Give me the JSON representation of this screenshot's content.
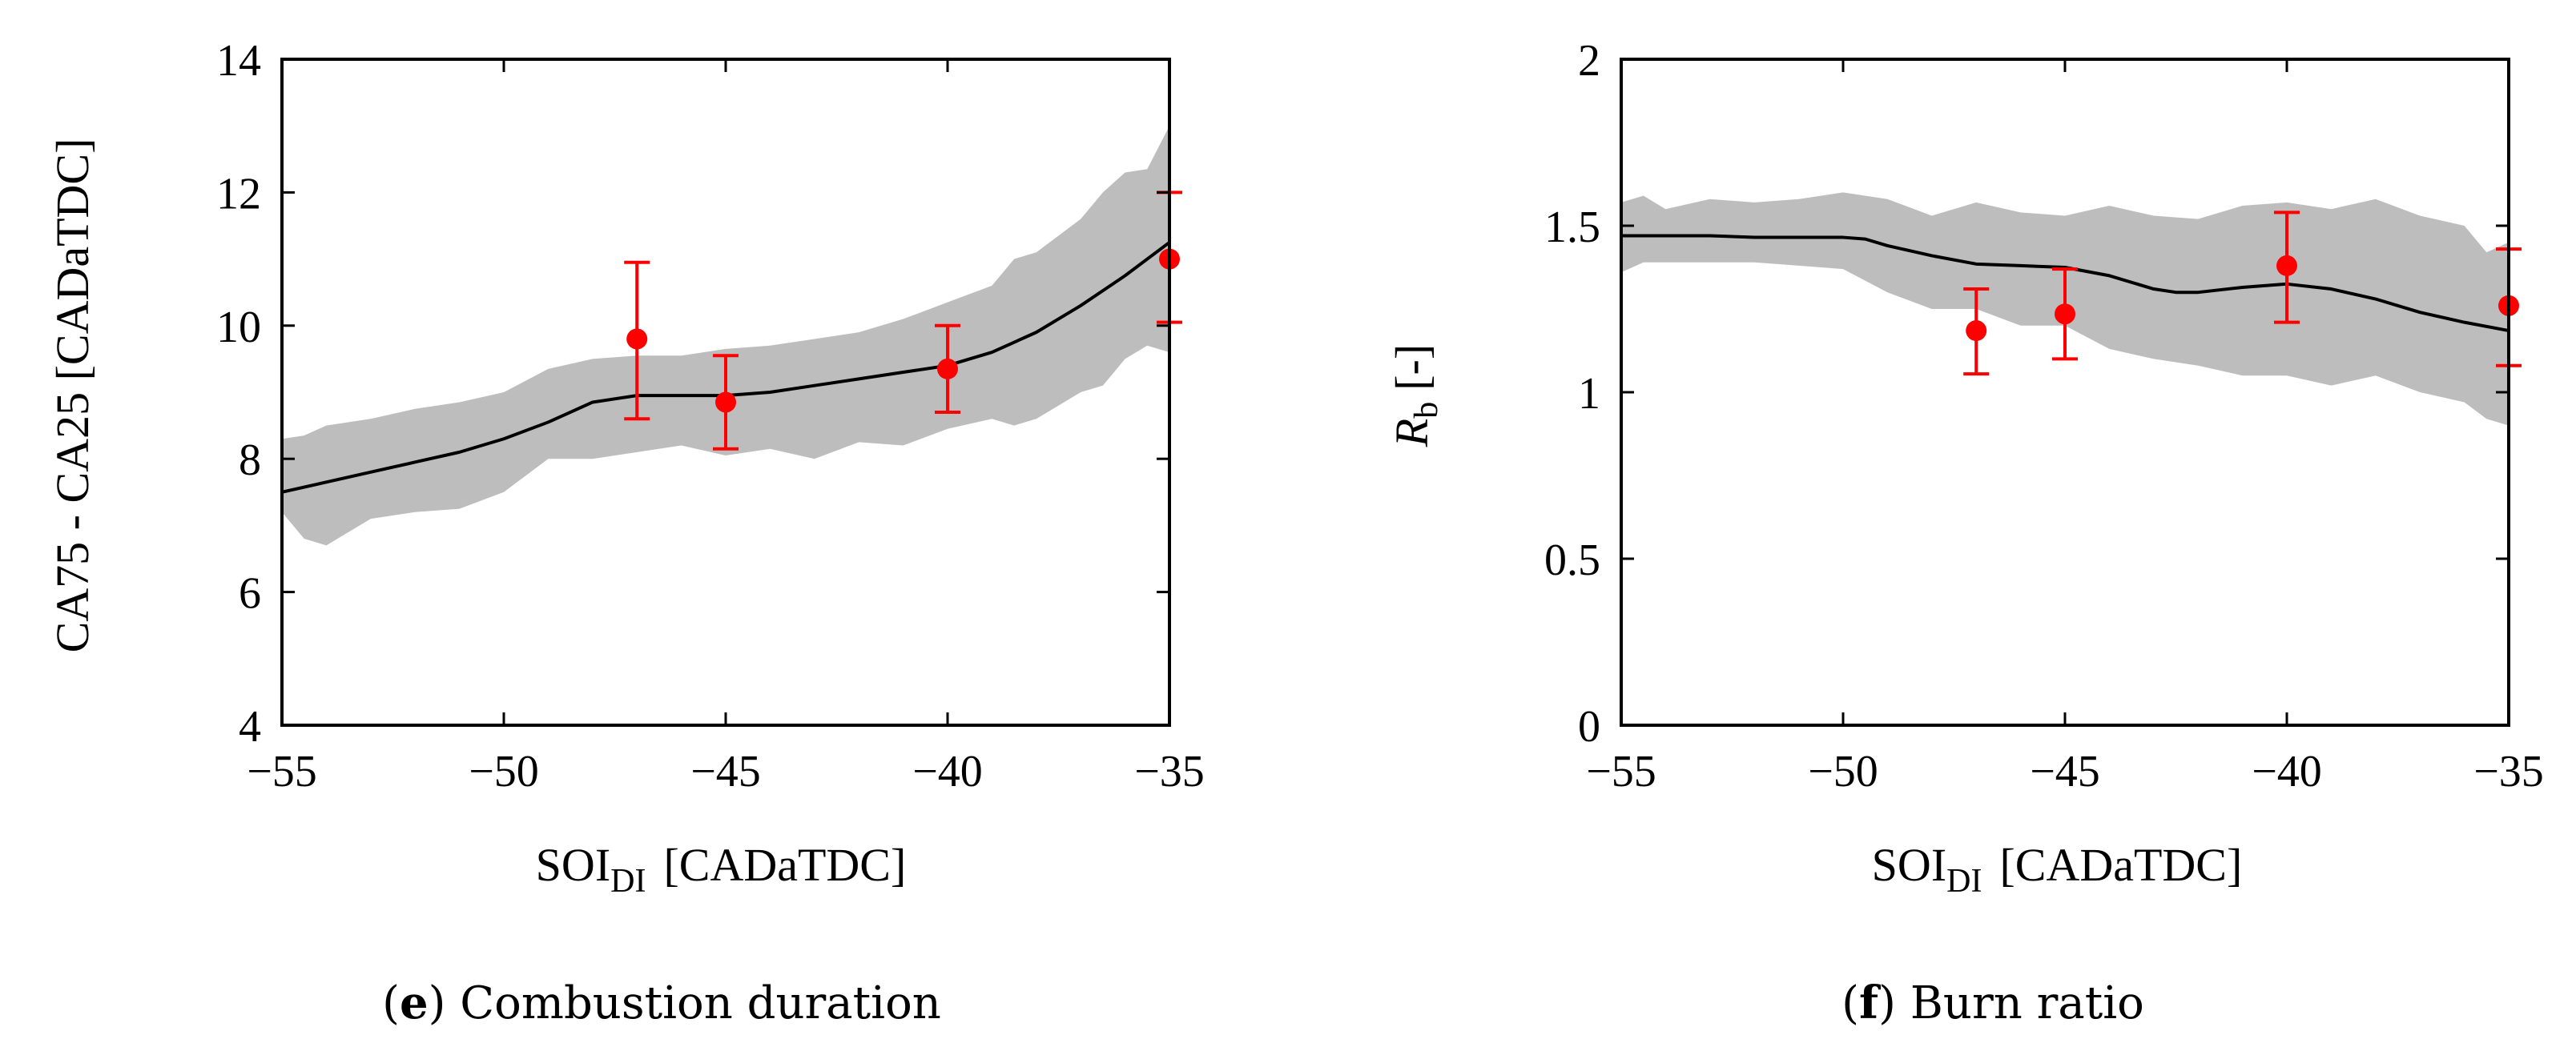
{
  "chart_data": [
    {
      "type": "line",
      "panel": "e",
      "caption_letter": "e",
      "caption_text": "Combustion duration",
      "xlabel_main": "SOI",
      "xlabel_sub": "DI",
      "xlabel_unit": "[CADaTDC]",
      "ylabel": "CA75 - CA25 [CADaTDC]",
      "xlim": [
        -55,
        -35
      ],
      "ylim": [
        4,
        14
      ],
      "xticks": [
        -55,
        -50,
        -45,
        -40,
        -35
      ],
      "xtick_labels": [
        "−55",
        "−50",
        "−45",
        "−40",
        "−35"
      ],
      "yticks": [
        4,
        6,
        8,
        10,
        12,
        14
      ],
      "ytick_labels": [
        "4",
        "6",
        "8",
        "10",
        "12",
        "14"
      ],
      "colors": {
        "band": "#bdbdbd",
        "line": "#000000",
        "measured": "#ff0000"
      },
      "series": [
        {
          "name": "model mean",
          "x": [
            -55,
            -54,
            -53,
            -52,
            -51,
            -50,
            -49,
            -48,
            -47,
            -46,
            -45,
            -44,
            -43,
            -42,
            -41,
            -40,
            -39,
            -38,
            -37,
            -36,
            -35
          ],
          "values": [
            7.5,
            7.65,
            7.8,
            7.95,
            8.1,
            8.3,
            8.55,
            8.85,
            8.95,
            8.95,
            8.95,
            9.0,
            9.1,
            9.2,
            9.3,
            9.4,
            9.6,
            9.9,
            10.3,
            10.75,
            11.25
          ]
        },
        {
          "name": "model band upper",
          "x": [
            -55,
            -54.5,
            -54,
            -53,
            -52,
            -51,
            -50,
            -49,
            -48,
            -47,
            -46,
            -45,
            -44,
            -43,
            -42,
            -41,
            -40,
            -39,
            -38.5,
            -38,
            -37,
            -36.5,
            -36,
            -35.5,
            -35
          ],
          "values": [
            8.3,
            8.35,
            8.5,
            8.6,
            8.75,
            8.85,
            9.0,
            9.35,
            9.5,
            9.55,
            9.55,
            9.65,
            9.7,
            9.8,
            9.9,
            10.1,
            10.35,
            10.6,
            11.0,
            11.1,
            11.6,
            12.0,
            12.3,
            12.35,
            13.0
          ]
        },
        {
          "name": "model band lower",
          "x": [
            -55,
            -54.5,
            -54,
            -53,
            -52,
            -51,
            -50,
            -49,
            -48,
            -47,
            -46,
            -45,
            -44,
            -43,
            -42,
            -41,
            -40,
            -39,
            -38.5,
            -38,
            -37,
            -36.5,
            -36,
            -35.5,
            -35
          ],
          "values": [
            7.2,
            6.8,
            6.7,
            7.1,
            7.2,
            7.25,
            7.5,
            8.0,
            8.0,
            8.1,
            8.2,
            8.05,
            8.15,
            8.0,
            8.25,
            8.2,
            8.45,
            8.6,
            8.5,
            8.6,
            9.0,
            9.1,
            9.5,
            9.7,
            9.6
          ]
        },
        {
          "name": "measured",
          "x": [
            -47,
            -45,
            -40,
            -35
          ],
          "values": [
            9.8,
            8.85,
            9.35,
            11.0
          ],
          "err_low": [
            8.6,
            8.15,
            8.7,
            10.05
          ],
          "err_high": [
            10.95,
            9.55,
            10.0,
            12.0
          ]
        }
      ]
    },
    {
      "type": "line",
      "panel": "f",
      "caption_letter": "f",
      "caption_text": "Burn ratio",
      "xlabel_main": "SOI",
      "xlabel_sub": "DI",
      "xlabel_unit": "[CADaTDC]",
      "ylabel_main": "R",
      "ylabel_sub": "b",
      "ylabel_unit": "[-]",
      "xlim": [
        -55,
        -35
      ],
      "ylim": [
        0,
        2
      ],
      "xticks": [
        -55,
        -50,
        -45,
        -40,
        -35
      ],
      "xtick_labels": [
        "−55",
        "−50",
        "−45",
        "−40",
        "−35"
      ],
      "yticks": [
        0,
        0.5,
        1,
        1.5,
        2
      ],
      "ytick_labels": [
        "0",
        "0.5",
        "1",
        "1.5",
        "2"
      ],
      "colors": {
        "band": "#bdbdbd",
        "line": "#000000",
        "measured": "#ff0000"
      },
      "series": [
        {
          "name": "model mean",
          "x": [
            -55,
            -54,
            -53,
            -52,
            -51,
            -50,
            -49.5,
            -49,
            -48,
            -47,
            -46,
            -45,
            -44,
            -43,
            -42.5,
            -42,
            -41,
            -40,
            -39,
            -38,
            -37,
            -36,
            -35
          ],
          "values": [
            1.47,
            1.47,
            1.47,
            1.465,
            1.465,
            1.465,
            1.46,
            1.44,
            1.41,
            1.385,
            1.38,
            1.375,
            1.35,
            1.31,
            1.3,
            1.3,
            1.315,
            1.325,
            1.31,
            1.28,
            1.24,
            1.21,
            1.185
          ]
        },
        {
          "name": "model band upper",
          "x": [
            -55,
            -54.5,
            -54,
            -53,
            -52,
            -51,
            -50,
            -49,
            -48,
            -47,
            -46,
            -45,
            -44,
            -43,
            -42,
            -41,
            -40,
            -39,
            -38,
            -37,
            -36,
            -35.5,
            -35
          ],
          "values": [
            1.57,
            1.59,
            1.55,
            1.58,
            1.57,
            1.58,
            1.6,
            1.58,
            1.53,
            1.57,
            1.54,
            1.53,
            1.56,
            1.53,
            1.52,
            1.56,
            1.57,
            1.55,
            1.58,
            1.53,
            1.5,
            1.42,
            1.45
          ]
        },
        {
          "name": "model band lower",
          "x": [
            -55,
            -54.5,
            -54,
            -53,
            -52,
            -51,
            -50,
            -49,
            -48,
            -47,
            -46,
            -45,
            -44,
            -43,
            -42,
            -41,
            -40,
            -39,
            -38,
            -37,
            -36,
            -35.5,
            -35
          ],
          "values": [
            1.36,
            1.39,
            1.39,
            1.39,
            1.39,
            1.38,
            1.37,
            1.3,
            1.25,
            1.25,
            1.2,
            1.2,
            1.13,
            1.1,
            1.08,
            1.05,
            1.05,
            1.02,
            1.05,
            1.0,
            0.97,
            0.92,
            0.9
          ]
        },
        {
          "name": "measured",
          "x": [
            -47,
            -45,
            -40,
            -35
          ],
          "values": [
            1.185,
            1.235,
            1.38,
            1.26
          ],
          "err_low": [
            1.055,
            1.1,
            1.21,
            1.08
          ],
          "err_high": [
            1.31,
            1.37,
            1.54,
            1.43
          ]
        }
      ]
    }
  ]
}
